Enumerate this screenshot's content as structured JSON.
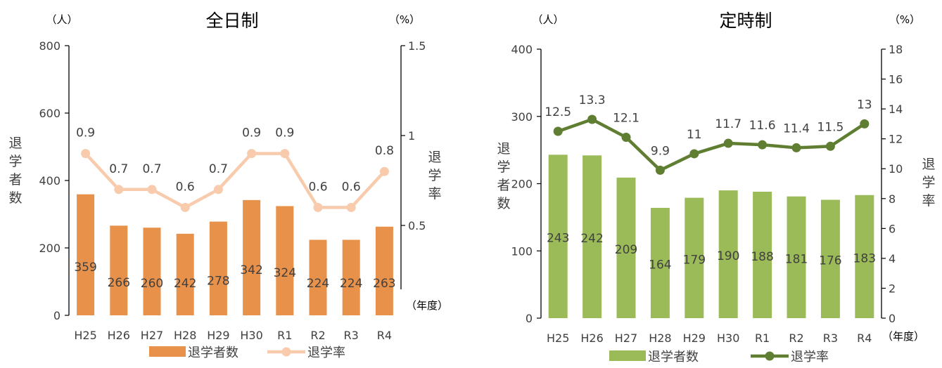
{
  "chart_data": [
    {
      "type": "bar+line",
      "title": "全日制",
      "left_unit": "（人）",
      "right_unit": "（%）",
      "ylabel": "退学者数",
      "y2label": "退学率",
      "xunit": "（年度）",
      "categories": [
        "H25",
        "H26",
        "H27",
        "H28",
        "H29",
        "H30",
        "R1",
        "R2",
        "R3",
        "R4"
      ],
      "yticks": [
        "0",
        "200",
        "400",
        "600",
        "800"
      ],
      "y2ticks": [
        "0.5",
        "1",
        "1.5"
      ],
      "ylim": [
        0,
        800
      ],
      "y2lim": [
        0,
        1.5
      ],
      "grid": false,
      "legend_position": "bottom",
      "series": [
        {
          "name": "退学者数",
          "kind": "bar",
          "color": "#E8914A",
          "values": [
            359,
            266,
            260,
            242,
            278,
            342,
            324,
            224,
            224,
            263
          ]
        },
        {
          "name": "退学率",
          "kind": "line",
          "color": "#F8CBAD",
          "values": [
            0.9,
            0.7,
            0.7,
            0.6,
            0.7,
            0.9,
            0.9,
            0.6,
            0.6,
            0.8
          ]
        }
      ]
    },
    {
      "type": "bar+line",
      "title": "定時制",
      "left_unit": "（人）",
      "right_unit": "（%）",
      "ylabel": "退学者数",
      "y2label": "退学率",
      "xunit": "（年度）",
      "categories": [
        "H25",
        "H26",
        "H27",
        "H28",
        "H29",
        "H30",
        "R1",
        "R2",
        "R3",
        "R4"
      ],
      "yticks": [
        "0",
        "100",
        "200",
        "300",
        "400"
      ],
      "y2ticks": [
        "0",
        "2",
        "4",
        "6",
        "8",
        "10",
        "12",
        "14",
        "16",
        "18"
      ],
      "ylim": [
        0,
        400
      ],
      "y2lim": [
        0,
        18
      ],
      "grid": false,
      "legend_position": "bottom",
      "series": [
        {
          "name": "退学者数",
          "kind": "bar",
          "color": "#9BBB59",
          "values": [
            243,
            242,
            209,
            164,
            179,
            190,
            188,
            181,
            176,
            183
          ]
        },
        {
          "name": "退学率",
          "kind": "line",
          "color": "#5F7E32",
          "values": [
            12.5,
            13.3,
            12.1,
            9.9,
            11,
            11.7,
            11.6,
            11.4,
            11.5,
            13
          ]
        }
      ]
    }
  ]
}
